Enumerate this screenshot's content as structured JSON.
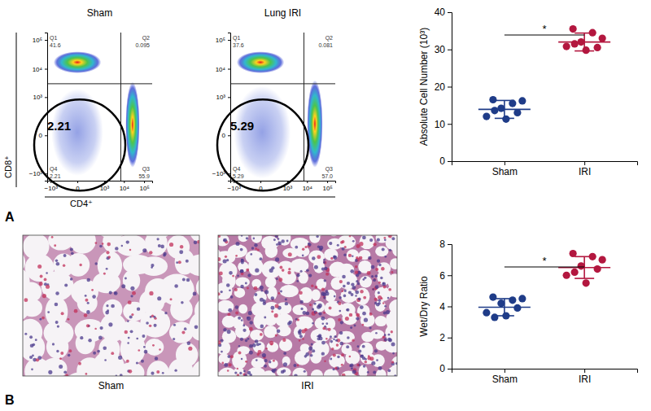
{
  "figure": {
    "panel_labels": [
      "A",
      "B"
    ],
    "histology": [
      {
        "caption": "Sham"
      },
      {
        "caption": "IRI"
      }
    ]
  },
  "chart_data": [
    {
      "type": "flow_cytometry",
      "title": "Sham",
      "xlabel": "CD4⁺",
      "ylabel": "CD8⁺",
      "xlim": [
        -1500,
        250000
      ],
      "ylim": [
        -1800,
        180000
      ],
      "xticks": [
        {
          "value": -1000,
          "label": "−10³"
        },
        0,
        {
          "value": 1000,
          "label": "10³"
        },
        {
          "value": 10000,
          "label": "10⁴"
        },
        {
          "value": 100000,
          "label": "10⁵"
        }
      ],
      "yticks": [
        {
          "value": -1000,
          "label": "−10³"
        },
        0,
        {
          "value": 1000,
          "label": "10³"
        },
        {
          "value": 10000,
          "label": "10⁴"
        },
        {
          "value": 100000,
          "label": "10⁵"
        }
      ],
      "quadrant_gate": {
        "x": 7000,
        "y": 3000
      },
      "quadrants": [
        {
          "label": "Q1",
          "value": 41.6
        },
        {
          "label": "Q2",
          "value": 0.095
        },
        {
          "label": "Q3",
          "value": 55.9
        },
        {
          "label": "Q4",
          "value": 2.21
        }
      ],
      "populations": [
        {
          "x_range": [
            -700,
            700
          ],
          "y_range": [
            7000,
            40000
          ],
          "marker": "dense"
        },
        {
          "x_range": [
            12000,
            60000
          ],
          "y_range": [
            -600,
            3500
          ],
          "marker": "dense"
        },
        {
          "x_range": [
            -900,
            900
          ],
          "y_range": [
            -1200,
            2000
          ],
          "marker": "sparse"
        }
      ]
    },
    {
      "type": "flow_cytometry",
      "title": "Lung IRI",
      "xlim": [
        -1500,
        250000
      ],
      "ylim": [
        -1800,
        180000
      ],
      "xticks": [
        {
          "value": -1000,
          "label": "−10³"
        },
        0,
        {
          "value": 1000,
          "label": "10³"
        },
        {
          "value": 10000,
          "label": "10⁴"
        },
        {
          "value": 100000,
          "label": "10⁵"
        }
      ],
      "yticks": [
        {
          "value": -1000,
          "label": "−10³"
        },
        0,
        {
          "value": 1000,
          "label": "10³"
        },
        {
          "value": 10000,
          "label": "10⁴"
        },
        {
          "value": 100000,
          "label": "10⁵"
        }
      ],
      "quadrant_gate": {
        "x": 7000,
        "y": 3000
      },
      "quadrants": [
        {
          "label": "Q1",
          "value": 37.6
        },
        {
          "label": "Q2",
          "value": 0.081
        },
        {
          "label": "Q3",
          "value": 57.0,
          "value_label": "57.0"
        },
        {
          "label": "Q4",
          "value": 5.29
        }
      ],
      "populations": [
        {
          "x_range": [
            -700,
            700
          ],
          "y_range": [
            7000,
            40000
          ],
          "marker": "dense"
        },
        {
          "x_range": [
            10000,
            60000
          ],
          "y_range": [
            -600,
            4000
          ],
          "marker": "dense"
        },
        {
          "x_range": [
            -1000,
            1500
          ],
          "y_range": [
            -1500,
            2500
          ],
          "marker": "sparse"
        }
      ]
    },
    {
      "type": "dot",
      "ylabel": "Absolute Cell Number (10³)",
      "categories": [
        "Sham",
        "IRI"
      ],
      "colors": [
        "#1f3c88",
        "#b3173f"
      ],
      "values": [
        [
          16.5,
          15.5,
          16.2,
          14.2,
          13.0,
          12.0,
          11.3,
          13.6
        ],
        [
          35.5,
          34.5,
          33.0,
          32.0,
          30.5,
          30.8,
          29.8,
          31.5
        ]
      ],
      "mean": [
        13.9,
        32.0
      ],
      "sd": [
        2.4,
        2.4
      ],
      "ylim": [
        0,
        40
      ],
      "yticks": [
        0,
        10,
        20,
        30,
        40
      ],
      "significance": {
        "text": "*",
        "pair": [
          0,
          1
        ]
      }
    },
    {
      "type": "dot",
      "ylabel": "Wet/Dry Ratio",
      "categories": [
        "Sham",
        "IRI"
      ],
      "colors": [
        "#1f3c88",
        "#b3173f"
      ],
      "values": [
        [
          4.6,
          4.4,
          4.5,
          4.2,
          3.9,
          3.6,
          3.4,
          3.3
        ],
        [
          7.4,
          7.2,
          7.0,
          6.6,
          6.4,
          6.0,
          5.5,
          6.2
        ]
      ],
      "mean": [
        3.95,
        6.5
      ],
      "sd": [
        0.55,
        0.7
      ],
      "ylim": [
        0,
        8
      ],
      "yticks": [
        0,
        2,
        4,
        6,
        8
      ],
      "significance": {
        "text": "*",
        "pair": [
          0,
          1
        ]
      }
    }
  ]
}
